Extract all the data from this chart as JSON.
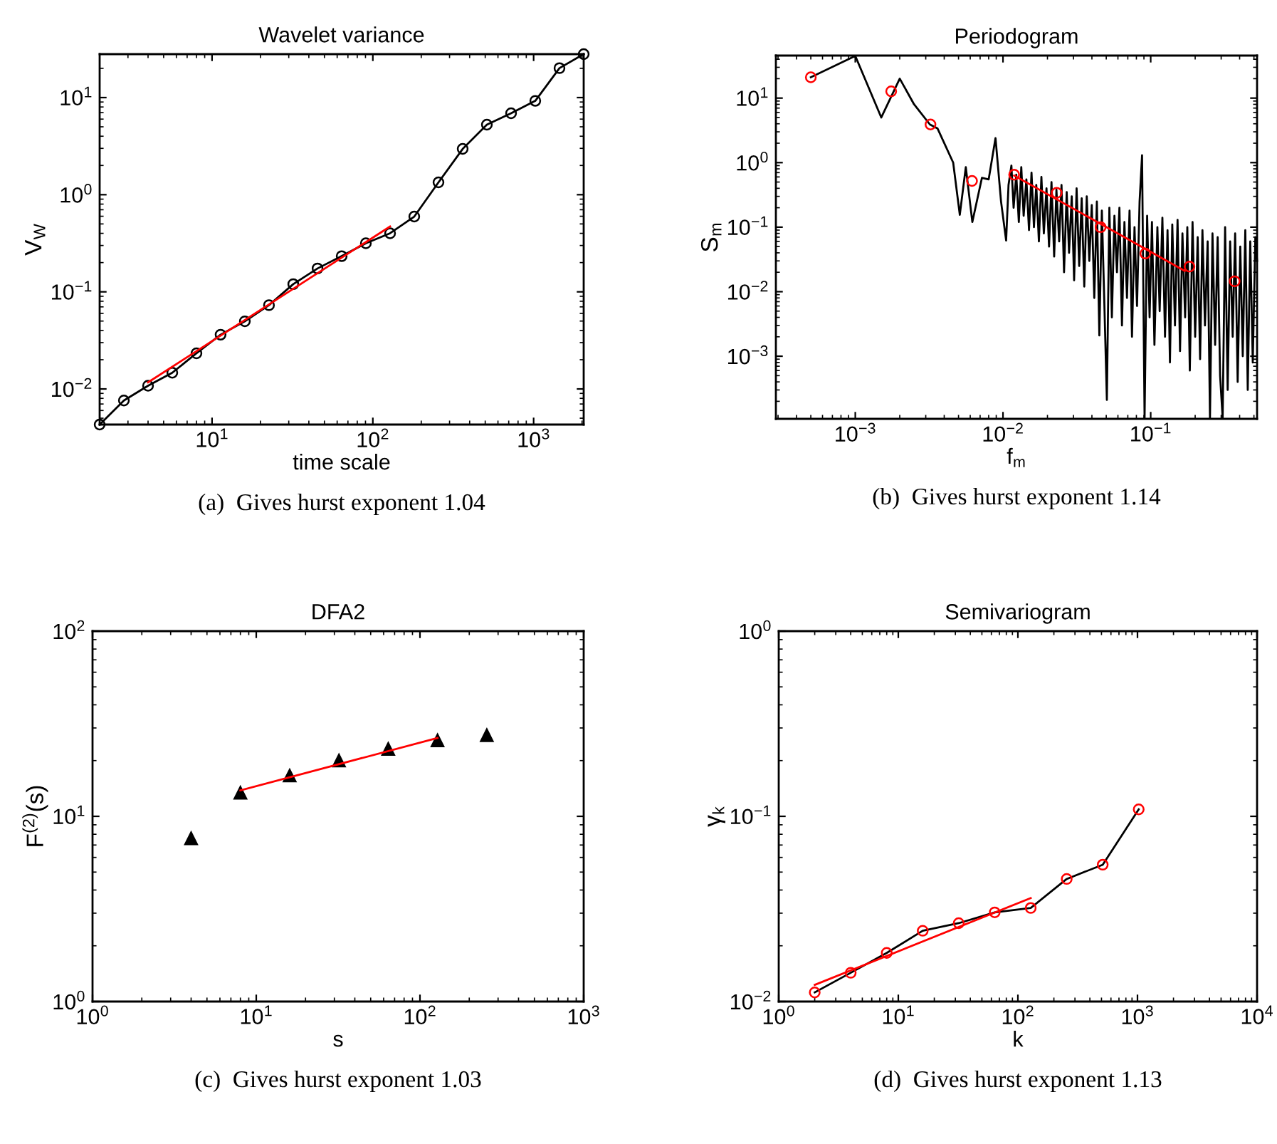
{
  "chart_data": [
    {
      "type": "line",
      "title": "Wavelet variance",
      "xlabel": "time scale",
      "ylabel": "V$_{W}$",
      "log": "xy",
      "xlim": [
        2,
        2048
      ],
      "ylim": [
        0.0043,
        28
      ],
      "xticks": [
        {
          "value": 10,
          "label": "10$^{1}$"
        },
        {
          "value": 100,
          "label": "10$^{2}$"
        },
        {
          "value": 1000,
          "label": "10$^{3}$"
        }
      ],
      "yticks": [
        {
          "value": 0.01,
          "label": "10$^{−2}$"
        },
        {
          "value": 0.1,
          "label": "10$^{−1}$"
        },
        {
          "value": 1,
          "label": "10$^{0}$"
        },
        {
          "value": 10,
          "label": "10$^{1}$"
        }
      ],
      "series": [
        {
          "color": "#000000",
          "marker": "circle",
          "x": [
            2,
            2.83,
            4,
            5.66,
            8,
            11.3,
            16,
            22.6,
            32,
            45.3,
            64,
            90.5,
            128,
            181,
            256,
            362,
            512,
            724,
            1024,
            1448,
            2048
          ],
          "values": [
            0.0043,
            0.0076,
            0.0108,
            0.0147,
            0.0233,
            0.0362,
            0.0497,
            0.0729,
            0.12,
            0.174,
            0.233,
            0.316,
            0.401,
            0.595,
            1.34,
            2.96,
            5.26,
            6.89,
            9.25,
            20.1,
            28
          ]
        },
        {
          "color": "#ff0000",
          "marker": "none",
          "x": [
            4,
            128
          ],
          "values": [
            0.0117,
            0.47
          ]
        }
      ],
      "annotations": [
        "(a)  Gives hurst exponent 1.04"
      ]
    },
    {
      "type": "line",
      "title": "Periodogram",
      "xlabel": "f$_{m}$",
      "ylabel": "S$_{m}$",
      "log": "xy",
      "xlim": [
        0.00029,
        0.525
      ],
      "ylim": [
        0.000107,
        45.6
      ],
      "xticks": [
        {
          "value": 0.001,
          "label": "10$^{−3}$"
        },
        {
          "value": 0.01,
          "label": "10$^{−2}$"
        },
        {
          "value": 0.1,
          "label": "10$^{−1}$"
        }
      ],
      "yticks": [
        {
          "value": 0.001,
          "label": "10$^{−3}$"
        },
        {
          "value": 0.01,
          "label": "10$^{−2}$"
        },
        {
          "value": 0.1,
          "label": "10$^{−1}$"
        },
        {
          "value": 1,
          "label": "10$^{0}$"
        },
        {
          "value": 10,
          "label": "10$^{1}$"
        }
      ],
      "series": [
        {
          "color": "#000000",
          "marker": "none",
          "x": [
            0.0005,
            0.001,
            0.0015,
            0.002,
            0.0025,
            0.0032,
            0.0036,
            0.0046,
            0.0051,
            0.0056,
            0.0062,
            0.0072,
            0.008,
            0.0089,
            0.0097,
            0.0105,
            0.0109,
            0.0114,
            0.0118,
            0.0123,
            0.0128,
            0.0133,
            0.0138,
            0.0144,
            0.015,
            0.0156,
            0.0162,
            0.0168,
            0.0175,
            0.0182,
            0.0189,
            0.0197,
            0.0205,
            0.0213,
            0.0222,
            0.023,
            0.024,
            0.0249,
            0.0259,
            0.027,
            0.028,
            0.0292,
            0.0303,
            0.0315,
            0.0328,
            0.0341,
            0.0355,
            0.0369,
            0.0384,
            0.0399,
            0.0415,
            0.0432,
            0.0449,
            0.0467,
            0.0486,
            0.0505,
            0.0525,
            0.0546,
            0.0568,
            0.0591,
            0.0614,
            0.0639,
            0.0664,
            0.0691,
            0.0719,
            0.0747,
            0.0777,
            0.0808,
            0.0841,
            0.0874,
            0.0909,
            0.0946,
            0.0983,
            0.102,
            0.106,
            0.111,
            0.115,
            0.12,
            0.125,
            0.13,
            0.135,
            0.14,
            0.146,
            0.152,
            0.158,
            0.164,
            0.171,
            0.177,
            0.184,
            0.192,
            0.2,
            0.208,
            0.216,
            0.224,
            0.233,
            0.243,
            0.252,
            0.262,
            0.273,
            0.284,
            0.295,
            0.307,
            0.319,
            0.332,
            0.345,
            0.359,
            0.373,
            0.388,
            0.404,
            0.42,
            0.437,
            0.454,
            0.472,
            0.491,
            0.511,
            0.525
          ],
          "values": [
            21,
            45,
            5.0,
            20,
            8,
            3.9,
            3.4,
            1.0,
            0.155,
            0.85,
            0.12,
            0.58,
            0.55,
            2.4,
            0.25,
            0.062,
            0.45,
            0.9,
            0.2,
            0.65,
            0.12,
            0.85,
            0.15,
            0.55,
            0.09,
            0.7,
            0.1,
            0.45,
            0.06,
            0.6,
            0.08,
            0.4,
            0.05,
            0.5,
            0.035,
            0.38,
            0.06,
            0.45,
            0.02,
            0.35,
            0.04,
            0.3,
            0.015,
            0.4,
            0.025,
            0.28,
            0.012,
            0.3,
            0.03,
            0.22,
            0.008,
            0.25,
            0.0021,
            0.18,
            0.006,
            0.00021,
            0.2,
            0.004,
            0.15,
            0.02,
            0.2,
            0.003,
            0.12,
            0.008,
            0.18,
            0.002,
            0.1,
            0.006,
            0.25,
            1.3,
            0.00011,
            0.15,
            0.004,
            0.12,
            0.0015,
            0.1,
            0.005,
            0.14,
            0.002,
            0.09,
            0.0008,
            0.11,
            0.003,
            0.13,
            0.0012,
            0.08,
            0.004,
            0.1,
            0.0006,
            0.12,
            0.002,
            0.07,
            0.0009,
            0.09,
            0.003,
            0.06,
            0.00011,
            0.08,
            0.0015,
            0.07,
            0.0005,
            0.00011,
            0.1,
            0.0003,
            0.06,
            0.002,
            0.08,
            0.0004,
            0.05,
            0.001,
            0.09,
            0.0003,
            0.06,
            0.0008,
            0.07,
            0.03
          ]
        },
        {
          "type": "scatter",
          "color": "#ff0000",
          "marker": "circle",
          "x": [
            0.0005,
            0.00175,
            0.00323,
            0.00617,
            0.0119,
            0.0231,
            0.0458,
            0.092,
            0.183,
            0.37
          ],
          "values": [
            21,
            12.7,
            3.9,
            0.52,
            0.65,
            0.34,
            0.1,
            0.039,
            0.0245,
            0.0145
          ]
        },
        {
          "color": "#ff0000",
          "marker": "none",
          "x": [
            0.0119,
            0.17
          ],
          "values": [
            0.63,
            0.021
          ]
        }
      ],
      "annotations": [
        "(b)  Gives hurst exponent 1.14"
      ]
    },
    {
      "type": "scatter",
      "title": "DFA2",
      "xlabel": "s",
      "ylabel": "F$^{(2)}$(s)",
      "log": "xy",
      "xlim": [
        1,
        1000
      ],
      "ylim": [
        1,
        100
      ],
      "xticks": [
        {
          "value": 1,
          "label": "10$^{0}$"
        },
        {
          "value": 10,
          "label": "10$^{1}$"
        },
        {
          "value": 100,
          "label": "10$^{2}$"
        },
        {
          "value": 1000,
          "label": "10$^{3}$"
        }
      ],
      "yticks": [
        {
          "value": 1,
          "label": "10$^{0}$"
        },
        {
          "value": 10,
          "label": "10$^{1}$"
        },
        {
          "value": 100,
          "label": "10$^{2}$"
        }
      ],
      "series": [
        {
          "color": "#000000",
          "marker": "triangle",
          "x": [
            4,
            8,
            16,
            32,
            64,
            128,
            256
          ],
          "values": [
            7.6,
            13.4,
            16.6,
            20,
            23.1,
            25.7,
            27.4
          ]
        },
        {
          "type": "line",
          "color": "#ff0000",
          "marker": "none",
          "x": [
            8,
            128
          ],
          "values": [
            13.8,
            26.5
          ]
        }
      ],
      "annotations": [
        "(c)  Gives hurst exponent 1.03"
      ]
    },
    {
      "type": "line",
      "title": "Semivariogram",
      "xlabel": "k",
      "ylabel": "γ$_{k}$",
      "log": "xy",
      "xlim": [
        1,
        10000
      ],
      "ylim": [
        0.01,
        1
      ],
      "xticks": [
        {
          "value": 1,
          "label": "10$^{0}$"
        },
        {
          "value": 10,
          "label": "10$^{1}$"
        },
        {
          "value": 100,
          "label": "10$^{2}$"
        },
        {
          "value": 1000,
          "label": "10$^{3}$"
        },
        {
          "value": 10000,
          "label": "10$^{4}$"
        }
      ],
      "yticks": [
        {
          "value": 0.01,
          "label": "10$^{−2}$"
        },
        {
          "value": 0.1,
          "label": "10$^{−1}$"
        },
        {
          "value": 1,
          "label": "10$^{0}$"
        }
      ],
      "series": [
        {
          "color": "#000000",
          "marker": "none",
          "x": [
            2,
            4,
            8,
            16,
            32,
            64,
            128,
            256,
            512,
            1024
          ],
          "values": [
            0.0112,
            0.0143,
            0.0183,
            0.0241,
            0.0265,
            0.0303,
            0.032,
            0.0459,
            0.0548,
            0.109
          ]
        },
        {
          "type": "scatter",
          "color": "#ff0000",
          "marker": "circle",
          "x": [
            2,
            4,
            8,
            16,
            32,
            64,
            128,
            256,
            512,
            1024
          ],
          "values": [
            0.0112,
            0.0143,
            0.0183,
            0.0241,
            0.0265,
            0.0303,
            0.032,
            0.0459,
            0.0548,
            0.109
          ]
        },
        {
          "color": "#ff0000",
          "marker": "none",
          "x": [
            2,
            128
          ],
          "values": [
            0.0123,
            0.0362
          ]
        }
      ],
      "annotations": [
        "(d)  Gives hurst exponent 1.13"
      ]
    }
  ]
}
